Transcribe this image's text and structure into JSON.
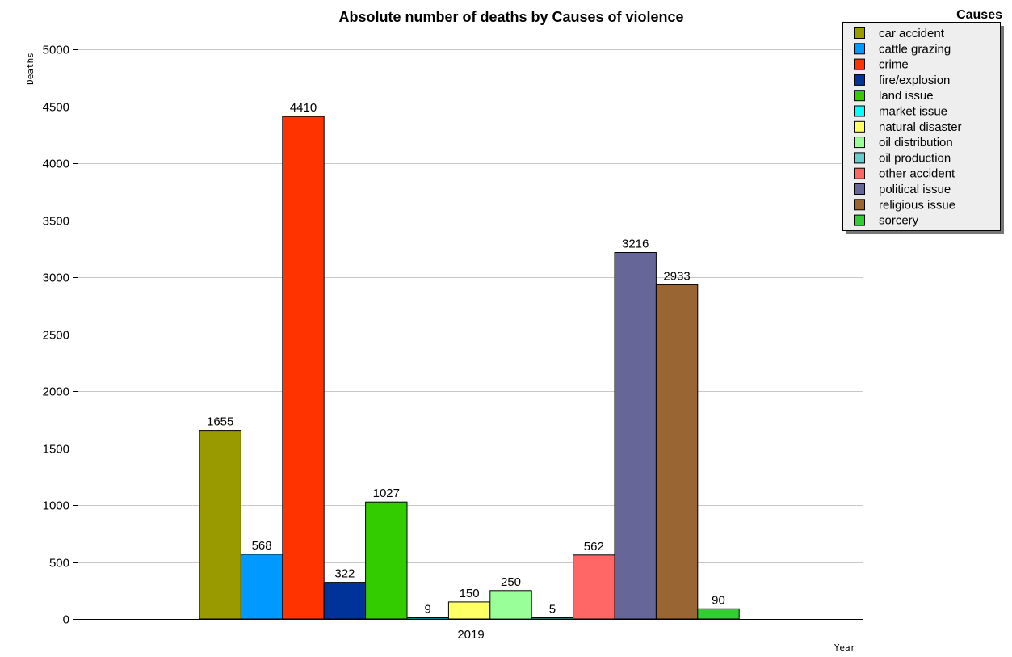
{
  "chart_data": {
    "type": "bar",
    "title": "Absolute number of deaths by Causes of violence",
    "xlabel": "Year",
    "ylabel": "Deaths",
    "categories": [
      "2019"
    ],
    "ylim": [
      0,
      5000
    ],
    "yticks": [
      0,
      500,
      1000,
      1500,
      2000,
      2500,
      3000,
      3500,
      4000,
      4500,
      5000
    ],
    "grid": true,
    "legend_title": "Causes",
    "legend_position": "top-right",
    "series": [
      {
        "name": "car accident",
        "values": [
          1655
        ],
        "color": "#999900"
      },
      {
        "name": "cattle grazing",
        "values": [
          568
        ],
        "color": "#0099ff"
      },
      {
        "name": "crime",
        "values": [
          4410
        ],
        "color": "#ff3300"
      },
      {
        "name": "fire/explosion",
        "values": [
          322
        ],
        "color": "#003399"
      },
      {
        "name": "land issue",
        "values": [
          1027
        ],
        "color": "#33cc00"
      },
      {
        "name": "market issue",
        "values": [
          9
        ],
        "color": "#00ffff"
      },
      {
        "name": "natural disaster",
        "values": [
          150
        ],
        "color": "#ffff66"
      },
      {
        "name": "oil distribution",
        "values": [
          250
        ],
        "color": "#99ff99"
      },
      {
        "name": "oil production",
        "values": [
          5
        ],
        "color": "#66cccc"
      },
      {
        "name": "other accident",
        "values": [
          562
        ],
        "color": "#ff6666"
      },
      {
        "name": "political issue",
        "values": [
          3216
        ],
        "color": "#666699"
      },
      {
        "name": "religious issue",
        "values": [
          2933
        ],
        "color": "#996633"
      },
      {
        "name": "sorcery",
        "values": [
          90
        ],
        "color": "#33cc33"
      }
    ]
  }
}
